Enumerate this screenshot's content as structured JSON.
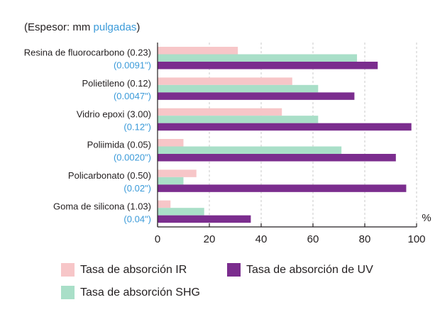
{
  "header": {
    "open": "(",
    "prefix": "Espesor: mm ",
    "inches": "pulgadas",
    "close": ")"
  },
  "colors": {
    "ir": "#f7c6c8",
    "shg": "#a9dfc8",
    "uv": "#7b2d8e",
    "label_blue": "#3a9ad9",
    "axis": "#231f20",
    "grid": "#c9c9c9"
  },
  "chart_data": {
    "type": "bar",
    "orientation": "horizontal",
    "categories": [
      {
        "name": "Resina de fluorocarbono (0.23)",
        "sub": "(0.0091\")"
      },
      {
        "name": "Polietileno (0.12)",
        "sub": "(0.0047\")"
      },
      {
        "name": "Vidrio epoxi (3.00)",
        "sub": "(0.12\")"
      },
      {
        "name": "Poliimida (0.05)",
        "sub": "(0.0020\")"
      },
      {
        "name": "Policarbonato (0.50)",
        "sub": "(0.02\")"
      },
      {
        "name": "Goma de silicona (1.03)",
        "sub": "(0.04\")"
      }
    ],
    "series": [
      {
        "name": "Tasa de absorción IR",
        "key": "ir",
        "values": [
          31,
          52,
          48,
          10,
          15,
          5
        ]
      },
      {
        "name": "Tasa de absorción SHG",
        "key": "shg",
        "values": [
          77,
          62,
          62,
          71,
          10,
          18
        ]
      },
      {
        "name": "Tasa de absorción de UV",
        "key": "uv",
        "values": [
          85,
          76,
          98,
          92,
          96,
          36
        ]
      }
    ],
    "xlim": [
      0,
      100
    ],
    "xticks": [
      0,
      20,
      40,
      60,
      80,
      100
    ],
    "xunit": "%",
    "grid": "vertical dashed",
    "legend_position": "bottom"
  }
}
